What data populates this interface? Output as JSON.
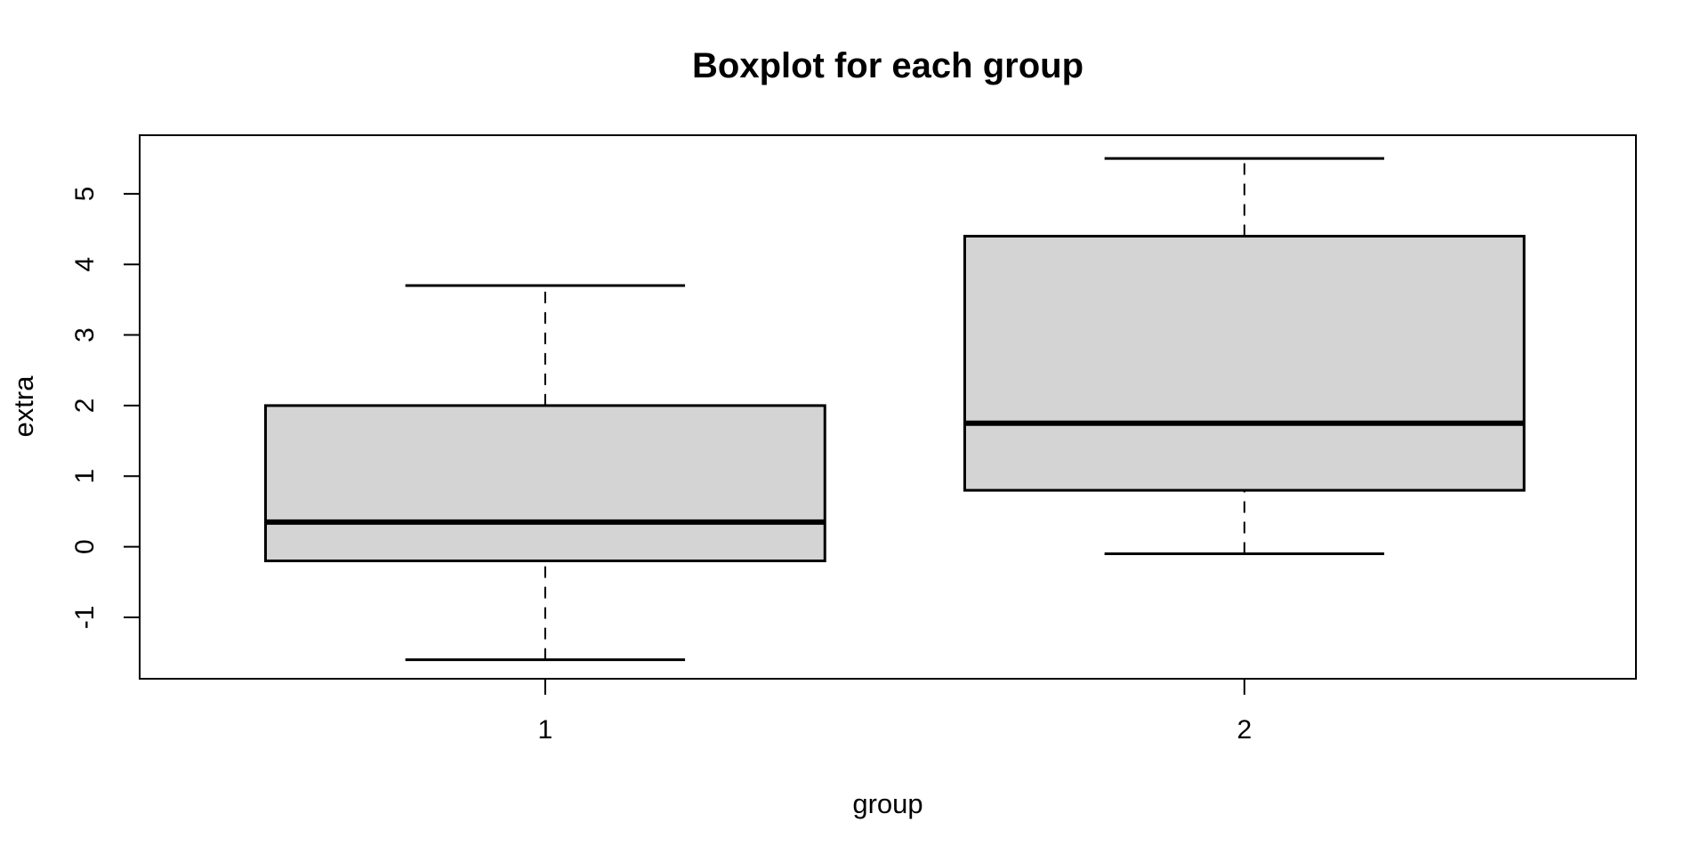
{
  "chart_data": {
    "type": "boxplot",
    "title": "Boxplot for each group",
    "xlabel": "group",
    "ylabel": "extra",
    "categories": [
      "1",
      "2"
    ],
    "y_ticks": [
      -1,
      0,
      1,
      2,
      3,
      4,
      5
    ],
    "ylim": [
      -1.87,
      5.83
    ],
    "xlim": [
      0.42,
      2.56
    ],
    "grid": false,
    "legend_position": "none",
    "box_fill": "#d4d4d4",
    "line_color": "#000000",
    "series": [
      {
        "name": "1",
        "whisker_low": -1.6,
        "q1": -0.2,
        "median": 0.35,
        "q3": 2.0,
        "whisker_high": 3.7,
        "outliers": []
      },
      {
        "name": "2",
        "whisker_low": -0.1,
        "q1": 0.8,
        "median": 1.75,
        "q3": 4.4,
        "whisker_high": 5.5,
        "outliers": []
      }
    ]
  }
}
